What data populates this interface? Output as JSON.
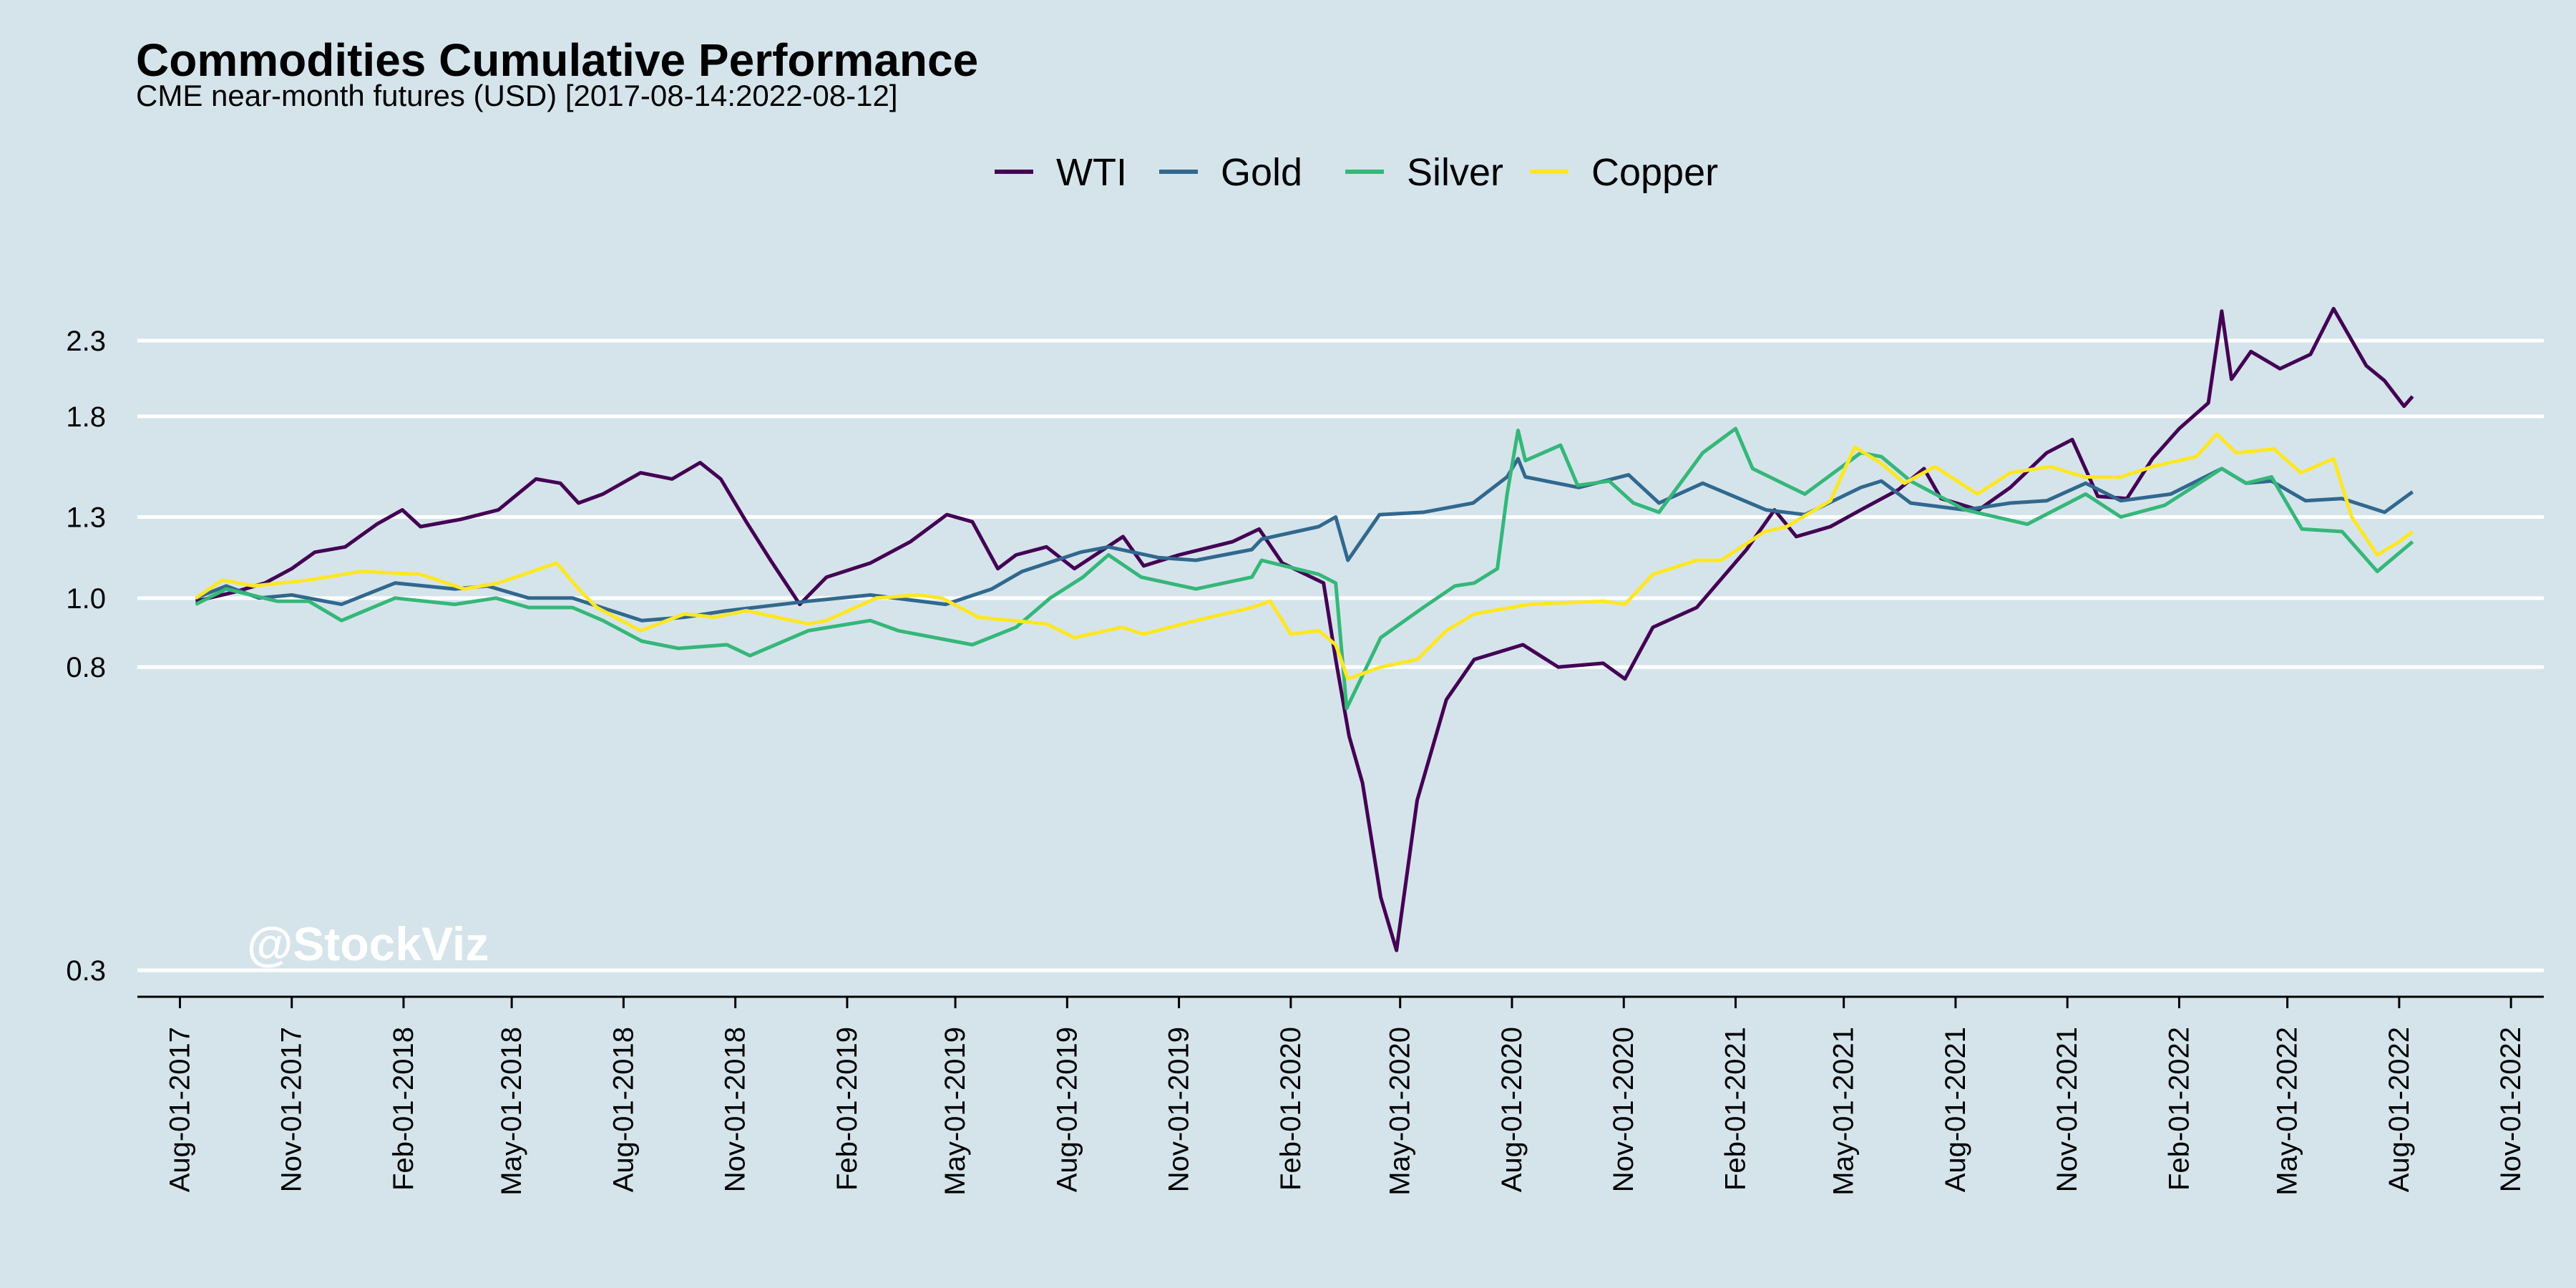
{
  "chart_data": {
    "type": "line",
    "title": "Commodities Cumulative Performance",
    "subtitle": "CME near-month futures (USD) [2017-08-14:2022-08-12]",
    "watermark": "@StockViz",
    "xlabel": "",
    "ylabel": "",
    "y_scale": "log",
    "ylim": [
      0.3,
      2.6
    ],
    "xlim": [
      "2017-06-27",
      "2022-11-28"
    ],
    "y_ticks": [
      0.3,
      0.8,
      1.0,
      1.3,
      1.8,
      2.3
    ],
    "x_ticks": [
      "Aug-01-2017",
      "Nov-01-2017",
      "Feb-01-2018",
      "May-01-2018",
      "Aug-01-2018",
      "Nov-01-2018",
      "Feb-01-2019",
      "May-01-2019",
      "Aug-01-2019",
      "Nov-01-2019",
      "Feb-01-2020",
      "May-01-2020",
      "Aug-01-2020",
      "Nov-01-2020",
      "Feb-01-2021",
      "May-01-2021",
      "Aug-01-2021",
      "Nov-01-2021",
      "Feb-01-2022",
      "May-01-2022",
      "Aug-01-2022",
      "Nov-01-2022"
    ],
    "legend_position": "top",
    "grid": "horizontal",
    "series": [
      {
        "name": "WTI",
        "color": "#440154",
        "points": [
          [
            "2017-08-14",
            0.99
          ],
          [
            "2017-09-15",
            1.02
          ],
          [
            "2017-10-10",
            1.05
          ],
          [
            "2017-11-01",
            1.1
          ],
          [
            "2017-11-20",
            1.16
          ],
          [
            "2017-12-15",
            1.18
          ],
          [
            "2018-01-10",
            1.27
          ],
          [
            "2018-01-31",
            1.33
          ],
          [
            "2018-02-15",
            1.26
          ],
          [
            "2018-03-20",
            1.29
          ],
          [
            "2018-04-20",
            1.33
          ],
          [
            "2018-05-21",
            1.47
          ],
          [
            "2018-06-10",
            1.45
          ],
          [
            "2018-06-25",
            1.36
          ],
          [
            "2018-07-15",
            1.4
          ],
          [
            "2018-08-15",
            1.5
          ],
          [
            "2018-09-10",
            1.47
          ],
          [
            "2018-10-03",
            1.55
          ],
          [
            "2018-10-20",
            1.47
          ],
          [
            "2018-11-10",
            1.28
          ],
          [
            "2018-11-30",
            1.13
          ],
          [
            "2018-12-24",
            0.98
          ],
          [
            "2019-01-15",
            1.07
          ],
          [
            "2019-02-20",
            1.12
          ],
          [
            "2019-03-25",
            1.2
          ],
          [
            "2019-04-24",
            1.31
          ],
          [
            "2019-05-15",
            1.28
          ],
          [
            "2019-06-05",
            1.1
          ],
          [
            "2019-06-20",
            1.15
          ],
          [
            "2019-07-15",
            1.18
          ],
          [
            "2019-08-07",
            1.1
          ],
          [
            "2019-09-16",
            1.22
          ],
          [
            "2019-10-03",
            1.11
          ],
          [
            "2019-11-01",
            1.15
          ],
          [
            "2019-12-15",
            1.2
          ],
          [
            "2020-01-06",
            1.25
          ],
          [
            "2020-01-25",
            1.12
          ],
          [
            "2020-02-28",
            1.05
          ],
          [
            "2020-03-09",
            0.82
          ],
          [
            "2020-03-20",
            0.64
          ],
          [
            "2020-03-31",
            0.55
          ],
          [
            "2020-04-15",
            0.38
          ],
          [
            "2020-04-28",
            0.32
          ],
          [
            "2020-05-15",
            0.52
          ],
          [
            "2020-06-08",
            0.72
          ],
          [
            "2020-07-01",
            0.82
          ],
          [
            "2020-08-10",
            0.86
          ],
          [
            "2020-09-08",
            0.8
          ],
          [
            "2020-10-15",
            0.81
          ],
          [
            "2020-11-02",
            0.77
          ],
          [
            "2020-11-25",
            0.91
          ],
          [
            "2020-12-31",
            0.97
          ],
          [
            "2021-02-10",
            1.17
          ],
          [
            "2021-03-05",
            1.33
          ],
          [
            "2021-03-23",
            1.22
          ],
          [
            "2021-04-20",
            1.26
          ],
          [
            "2021-05-15",
            1.33
          ],
          [
            "2021-06-15",
            1.42
          ],
          [
            "2021-07-06",
            1.52
          ],
          [
            "2021-07-20",
            1.38
          ],
          [
            "2021-08-20",
            1.33
          ],
          [
            "2021-09-15",
            1.43
          ],
          [
            "2021-10-15",
            1.6
          ],
          [
            "2021-11-05",
            1.67
          ],
          [
            "2021-11-26",
            1.39
          ],
          [
            "2021-12-20",
            1.38
          ],
          [
            "2022-01-10",
            1.57
          ],
          [
            "2022-02-01",
            1.73
          ],
          [
            "2022-02-25",
            1.88
          ],
          [
            "2022-03-08",
            2.53
          ],
          [
            "2022-03-16",
            2.03
          ],
          [
            "2022-04-01",
            2.22
          ],
          [
            "2022-04-25",
            2.1
          ],
          [
            "2022-05-20",
            2.2
          ],
          [
            "2022-06-08",
            2.55
          ],
          [
            "2022-06-20",
            2.35
          ],
          [
            "2022-07-05",
            2.12
          ],
          [
            "2022-07-20",
            2.02
          ],
          [
            "2022-08-05",
            1.86
          ],
          [
            "2022-08-12",
            1.92
          ]
        ]
      },
      {
        "name": "Gold",
        "color": "#31688e",
        "points": [
          [
            "2017-08-14",
            1.0
          ],
          [
            "2017-09-08",
            1.04
          ],
          [
            "2017-10-05",
            1.0
          ],
          [
            "2017-11-01",
            1.01
          ],
          [
            "2017-12-12",
            0.98
          ],
          [
            "2018-01-25",
            1.05
          ],
          [
            "2018-03-15",
            1.03
          ],
          [
            "2018-04-11",
            1.04
          ],
          [
            "2018-05-15",
            1.0
          ],
          [
            "2018-06-20",
            1.0
          ],
          [
            "2018-08-16",
            0.93
          ],
          [
            "2018-09-20",
            0.94
          ],
          [
            "2018-10-25",
            0.96
          ],
          [
            "2018-12-31",
            0.99
          ],
          [
            "2019-02-20",
            1.01
          ],
          [
            "2019-04-23",
            0.98
          ],
          [
            "2019-05-31",
            1.03
          ],
          [
            "2019-06-25",
            1.09
          ],
          [
            "2019-08-12",
            1.16
          ],
          [
            "2019-09-04",
            1.18
          ],
          [
            "2019-10-15",
            1.14
          ],
          [
            "2019-11-15",
            1.13
          ],
          [
            "2019-12-31",
            1.17
          ],
          [
            "2020-01-08",
            1.21
          ],
          [
            "2020-02-24",
            1.26
          ],
          [
            "2020-03-09",
            1.3
          ],
          [
            "2020-03-19",
            1.13
          ],
          [
            "2020-04-14",
            1.31
          ],
          [
            "2020-05-20",
            1.32
          ],
          [
            "2020-06-30",
            1.36
          ],
          [
            "2020-07-28",
            1.48
          ],
          [
            "2020-08-06",
            1.57
          ],
          [
            "2020-08-12",
            1.48
          ],
          [
            "2020-09-25",
            1.43
          ],
          [
            "2020-11-05",
            1.49
          ],
          [
            "2020-11-30",
            1.36
          ],
          [
            "2021-01-05",
            1.45
          ],
          [
            "2021-02-26",
            1.33
          ],
          [
            "2021-03-30",
            1.31
          ],
          [
            "2021-05-15",
            1.43
          ],
          [
            "2021-06-01",
            1.46
          ],
          [
            "2021-06-25",
            1.36
          ],
          [
            "2021-08-09",
            1.33
          ],
          [
            "2021-09-15",
            1.36
          ],
          [
            "2021-10-15",
            1.37
          ],
          [
            "2021-11-16",
            1.45
          ],
          [
            "2021-12-15",
            1.37
          ],
          [
            "2022-01-25",
            1.4
          ],
          [
            "2022-03-08",
            1.52
          ],
          [
            "2022-03-28",
            1.45
          ],
          [
            "2022-04-18",
            1.46
          ],
          [
            "2022-05-16",
            1.37
          ],
          [
            "2022-06-15",
            1.38
          ],
          [
            "2022-07-20",
            1.32
          ],
          [
            "2022-08-12",
            1.41
          ]
        ]
      },
      {
        "name": "Silver",
        "color": "#35b779",
        "points": [
          [
            "2017-08-14",
            0.98
          ],
          [
            "2017-09-08",
            1.03
          ],
          [
            "2017-10-20",
            0.99
          ],
          [
            "2017-11-15",
            0.99
          ],
          [
            "2017-12-12",
            0.93
          ],
          [
            "2018-01-25",
            1.0
          ],
          [
            "2018-03-15",
            0.98
          ],
          [
            "2018-04-18",
            1.0
          ],
          [
            "2018-05-15",
            0.97
          ],
          [
            "2018-06-20",
            0.97
          ],
          [
            "2018-07-15",
            0.93
          ],
          [
            "2018-08-16",
            0.87
          ],
          [
            "2018-09-15",
            0.85
          ],
          [
            "2018-10-25",
            0.86
          ],
          [
            "2018-11-13",
            0.83
          ],
          [
            "2018-12-31",
            0.9
          ],
          [
            "2019-02-20",
            0.93
          ],
          [
            "2019-03-15",
            0.9
          ],
          [
            "2019-05-15",
            0.86
          ],
          [
            "2019-06-20",
            0.91
          ],
          [
            "2019-07-18",
            1.0
          ],
          [
            "2019-08-14",
            1.07
          ],
          [
            "2019-09-04",
            1.15
          ],
          [
            "2019-10-01",
            1.07
          ],
          [
            "2019-11-15",
            1.03
          ],
          [
            "2019-12-31",
            1.07
          ],
          [
            "2020-01-08",
            1.13
          ],
          [
            "2020-02-24",
            1.08
          ],
          [
            "2020-03-09",
            1.05
          ],
          [
            "2020-03-18",
            0.7
          ],
          [
            "2020-04-15",
            0.88
          ],
          [
            "2020-05-20",
            0.97
          ],
          [
            "2020-06-15",
            1.04
          ],
          [
            "2020-07-01",
            1.05
          ],
          [
            "2020-07-20",
            1.1
          ],
          [
            "2020-07-28",
            1.4
          ],
          [
            "2020-08-06",
            1.72
          ],
          [
            "2020-08-12",
            1.56
          ],
          [
            "2020-09-10",
            1.64
          ],
          [
            "2020-09-24",
            1.44
          ],
          [
            "2020-10-20",
            1.46
          ],
          [
            "2020-11-09",
            1.36
          ],
          [
            "2020-11-30",
            1.32
          ],
          [
            "2021-01-05",
            1.6
          ],
          [
            "2021-02-01",
            1.73
          ],
          [
            "2021-02-15",
            1.52
          ],
          [
            "2021-03-30",
            1.4
          ],
          [
            "2021-05-15",
            1.6
          ],
          [
            "2021-06-01",
            1.58
          ],
          [
            "2021-06-25",
            1.46
          ],
          [
            "2021-08-09",
            1.33
          ],
          [
            "2021-09-29",
            1.27
          ],
          [
            "2021-11-16",
            1.4
          ],
          [
            "2021-12-15",
            1.3
          ],
          [
            "2022-01-20",
            1.35
          ],
          [
            "2022-03-08",
            1.52
          ],
          [
            "2022-03-28",
            1.45
          ],
          [
            "2022-04-18",
            1.48
          ],
          [
            "2022-05-13",
            1.25
          ],
          [
            "2022-06-15",
            1.24
          ],
          [
            "2022-07-14",
            1.09
          ],
          [
            "2022-08-12",
            1.2
          ]
        ]
      },
      {
        "name": "Copper",
        "color": "#fde725",
        "points": [
          [
            "2017-08-14",
            1.0
          ],
          [
            "2017-09-05",
            1.06
          ],
          [
            "2017-10-01",
            1.04
          ],
          [
            "2017-11-15",
            1.06
          ],
          [
            "2017-12-28",
            1.09
          ],
          [
            "2018-02-15",
            1.08
          ],
          [
            "2018-03-23",
            1.03
          ],
          [
            "2018-04-20",
            1.05
          ],
          [
            "2018-06-07",
            1.12
          ],
          [
            "2018-06-25",
            1.03
          ],
          [
            "2018-07-10",
            0.97
          ],
          [
            "2018-08-15",
            0.9
          ],
          [
            "2018-09-20",
            0.95
          ],
          [
            "2018-10-15",
            0.94
          ],
          [
            "2018-11-10",
            0.96
          ],
          [
            "2018-12-31",
            0.92
          ],
          [
            "2019-01-15",
            0.93
          ],
          [
            "2019-02-25",
            1.0
          ],
          [
            "2019-04-01",
            1.01
          ],
          [
            "2019-04-20",
            1.0
          ],
          [
            "2019-05-20",
            0.94
          ],
          [
            "2019-07-15",
            0.92
          ],
          [
            "2019-08-07",
            0.88
          ],
          [
            "2019-09-15",
            0.91
          ],
          [
            "2019-10-03",
            0.89
          ],
          [
            "2019-11-15",
            0.93
          ],
          [
            "2019-12-31",
            0.97
          ],
          [
            "2020-01-15",
            0.99
          ],
          [
            "2020-02-01",
            0.89
          ],
          [
            "2020-02-24",
            0.9
          ],
          [
            "2020-03-09",
            0.86
          ],
          [
            "2020-03-19",
            0.77
          ],
          [
            "2020-04-15",
            0.8
          ],
          [
            "2020-05-15",
            0.82
          ],
          [
            "2020-06-08",
            0.9
          ],
          [
            "2020-07-01",
            0.95
          ],
          [
            "2020-08-15",
            0.98
          ],
          [
            "2020-10-15",
            0.99
          ],
          [
            "2020-11-02",
            0.98
          ],
          [
            "2020-11-25",
            1.08
          ],
          [
            "2020-12-31",
            1.13
          ],
          [
            "2021-01-20",
            1.13
          ],
          [
            "2021-02-25",
            1.24
          ],
          [
            "2021-03-15",
            1.26
          ],
          [
            "2021-04-20",
            1.37
          ],
          [
            "2021-05-10",
            1.63
          ],
          [
            "2021-05-31",
            1.55
          ],
          [
            "2021-06-20",
            1.45
          ],
          [
            "2021-07-15",
            1.53
          ],
          [
            "2021-08-19",
            1.4
          ],
          [
            "2021-09-15",
            1.5
          ],
          [
            "2021-10-18",
            1.53
          ],
          [
            "2021-11-15",
            1.48
          ],
          [
            "2021-12-15",
            1.48
          ],
          [
            "2022-01-10",
            1.53
          ],
          [
            "2022-02-15",
            1.58
          ],
          [
            "2022-03-04",
            1.7
          ],
          [
            "2022-03-20",
            1.6
          ],
          [
            "2022-04-20",
            1.62
          ],
          [
            "2022-05-12",
            1.5
          ],
          [
            "2022-06-08",
            1.57
          ],
          [
            "2022-06-23",
            1.3
          ],
          [
            "2022-07-14",
            1.15
          ],
          [
            "2022-08-01",
            1.2
          ],
          [
            "2022-08-12",
            1.24
          ]
        ]
      }
    ]
  }
}
